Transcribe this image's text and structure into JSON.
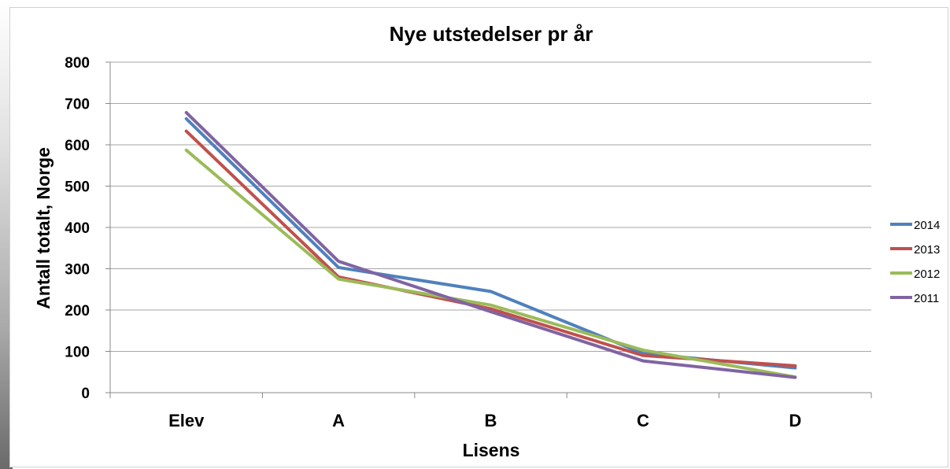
{
  "chart_data": {
    "type": "line",
    "title": "Nye utstedelser pr år",
    "xlabel": "Lisens",
    "ylabel": "Antall totalt, Norge",
    "categories": [
      "Elev",
      "A",
      "B",
      "C",
      "D"
    ],
    "ylim": [
      0,
      800
    ],
    "yticks": [
      0,
      100,
      200,
      300,
      400,
      500,
      600,
      700,
      800
    ],
    "grid": true,
    "legend": "right",
    "series": [
      {
        "name": "2014",
        "color": "#4f81bd",
        "values": [
          663,
          303,
          245,
          95,
          60
        ]
      },
      {
        "name": "2013",
        "color": "#c0504d",
        "values": [
          633,
          280,
          203,
          90,
          65
        ]
      },
      {
        "name": "2012",
        "color": "#9bbb59",
        "values": [
          587,
          275,
          212,
          103,
          38
        ]
      },
      {
        "name": "2011",
        "color": "#8064a2",
        "values": [
          678,
          318,
          196,
          77,
          37
        ]
      }
    ]
  }
}
